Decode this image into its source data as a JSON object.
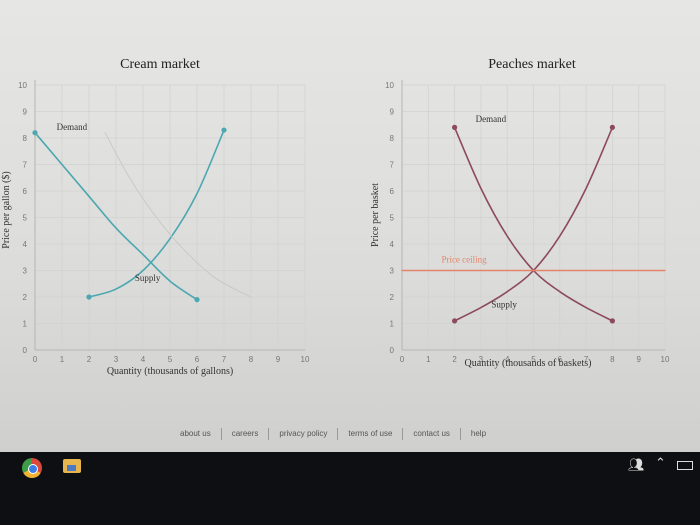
{
  "chart_data": [
    {
      "type": "line",
      "title": "Cream market",
      "xlabel": "Quantity (thousands of gallons)",
      "ylabel": "Price per gallon ($)",
      "xlim": [
        0,
        10
      ],
      "ylim": [
        0,
        10
      ],
      "xticks": [
        "0",
        "1",
        "2",
        "3",
        "4",
        "5",
        "6",
        "7",
        "8",
        "9",
        "10"
      ],
      "yticks": [
        "0",
        "1",
        "2",
        "3",
        "4",
        "5",
        "6",
        "7",
        "8",
        "9",
        "10"
      ],
      "grid": true,
      "series": [
        {
          "name": "Demand",
          "color": "#4ba7b0",
          "points": [
            [
              0,
              8.2
            ],
            [
              2,
              5.8
            ],
            [
              3,
              4.6
            ],
            [
              4,
              3.6
            ],
            [
              5,
              2.6
            ],
            [
              6,
              1.9
            ]
          ]
        },
        {
          "name": "Supply",
          "color": "#4ba7b0",
          "points": [
            [
              2,
              2.0
            ],
            [
              3,
              2.3
            ],
            [
              4,
              3.0
            ],
            [
              5,
              4.2
            ],
            [
              6,
              5.9
            ],
            [
              7,
              8.3
            ]
          ]
        },
        {
          "name": "",
          "color": "#c9c9c9",
          "points": [
            [
              2.6,
              8.2
            ],
            [
              3.5,
              6.5
            ],
            [
              4.5,
              5.0
            ],
            [
              5.5,
              3.8
            ],
            [
              6.7,
              2.7
            ],
            [
              8,
              2.0
            ]
          ]
        }
      ],
      "annotations": [
        {
          "text": "Demand",
          "x": 0.8,
          "y": 8.3
        },
        {
          "text": "Supply",
          "x": 3.7,
          "y": 2.6
        }
      ]
    },
    {
      "type": "line",
      "title": "Peaches market",
      "xlabel": "Quantity (thousands of baskets)",
      "ylabel": "Price per basket",
      "xlim": [
        0,
        10
      ],
      "ylim": [
        0,
        10
      ],
      "xticks": [
        "0",
        "1",
        "2",
        "3",
        "4",
        "5",
        "6",
        "7",
        "8",
        "9",
        "10"
      ],
      "yticks": [
        "0",
        "1",
        "2",
        "3",
        "4",
        "5",
        "6",
        "7",
        "8",
        "9",
        "10"
      ],
      "grid": true,
      "series": [
        {
          "name": "Demand",
          "color": "#8c4a5c",
          "points": [
            [
              2,
              8.4
            ],
            [
              3,
              6.1
            ],
            [
              4,
              4.3
            ],
            [
              5,
              3.0
            ],
            [
              6,
              2.2
            ],
            [
              7,
              1.6
            ],
            [
              8,
              1.1
            ]
          ]
        },
        {
          "name": "Supply",
          "color": "#8c4a5c",
          "points": [
            [
              2,
              1.1
            ],
            [
              3,
              1.6
            ],
            [
              4,
              2.2
            ],
            [
              5,
              3.0
            ],
            [
              6,
              4.3
            ],
            [
              7,
              6.1
            ],
            [
              8,
              8.4
            ]
          ]
        },
        {
          "name": "Price ceiling",
          "color": "#e2856a",
          "points": [
            [
              0,
              3
            ],
            [
              10,
              3
            ]
          ]
        }
      ],
      "annotations": [
        {
          "text": "Demand",
          "x": 2.8,
          "y": 8.6
        },
        {
          "text": "Supply",
          "x": 3.4,
          "y": 1.6
        },
        {
          "text": "Price ceiling",
          "x": 1.5,
          "y": 3.3
        }
      ]
    }
  ],
  "footer": {
    "links": [
      "about us",
      "careers",
      "privacy policy",
      "terms of use",
      "contact us",
      "help"
    ]
  },
  "taskbar": {
    "icons": [
      "chrome-icon",
      "folder-icon",
      "people-icon",
      "chevron-up-icon",
      "battery-icon"
    ]
  }
}
